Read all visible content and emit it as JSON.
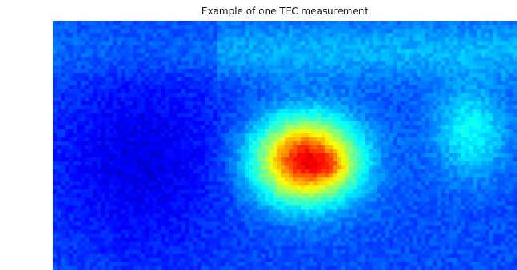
{
  "chart_data": {
    "type": "heatmap",
    "title": "Example of one TEC measurement",
    "xlabel": "",
    "ylabel": "",
    "colormap": "jet",
    "colormap_stops": [
      "#00007f",
      "#0000ff",
      "#007fff",
      "#00ffff",
      "#7fff7f",
      "#ffff00",
      "#ff7f00",
      "#ff0000",
      "#7f0000"
    ],
    "axes_visible": false,
    "grid": false,
    "legend": "none",
    "colorbar": false,
    "background_level": 0.2,
    "enhancement": {
      "center": [
        0.545,
        0.56
      ],
      "radius": [
        0.125,
        0.19
      ],
      "peak_level": 0.88
    },
    "core": {
      "center": [
        0.595,
        0.585
      ],
      "radius": [
        0.035,
        0.045
      ],
      "peak_level": 0.98
    },
    "dark_region": {
      "center": [
        0.19,
        0.56
      ],
      "radius": [
        0.2,
        0.4
      ],
      "level": 0.1
    },
    "upper_band_level": 0.3,
    "right_edge_feature_level": 0.38
  }
}
